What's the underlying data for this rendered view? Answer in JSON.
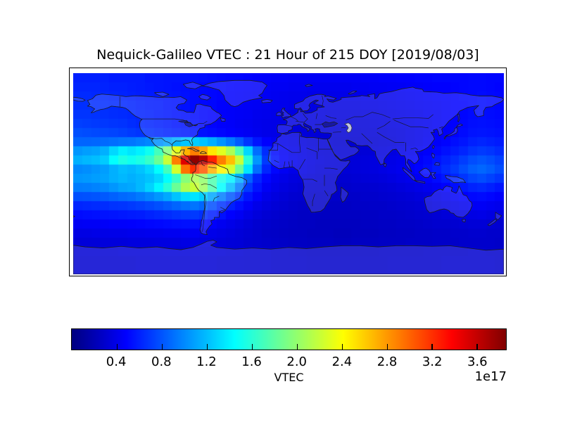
{
  "title": "Nequick-Galileo VTEC : 21 Hour of 215 DOY [2019/08/03]",
  "colorbar": {
    "label": "VTEC",
    "offset_text": "1e17",
    "tick_labels": [
      "0.4",
      "0.8",
      "1.2",
      "1.6",
      "2.0",
      "2.4",
      "2.8",
      "3.2",
      "3.6"
    ],
    "tick_values": [
      0.4,
      0.8,
      1.2,
      1.6,
      2.0,
      2.4,
      2.8,
      3.2,
      3.6
    ],
    "vmin": 0.0,
    "vmax": 3.86,
    "colormap": "jet"
  },
  "map": {
    "land_tint": "rgba(255,255,255,0.15)",
    "coastline_color": "#1c1c1c",
    "caspian_fill": "#ccd1de"
  },
  "chart_data": {
    "type": "heatmap",
    "title": "Nequick-Galileo VTEC : 21 Hour of 215 DOY [2019/08/03]",
    "colorbar_label": "VTEC",
    "units_exponent": "1e17",
    "colormap": "jet",
    "vmin": 0.0,
    "vmax": 3.86,
    "lon_range": [
      -180,
      180
    ],
    "lat_range": [
      -90,
      90
    ],
    "grid_shape": [
      22,
      48
    ],
    "legend_position": "bottom",
    "values": [
      [
        0.6,
        0.6,
        0.6,
        0.6,
        0.58,
        0.58,
        0.58,
        0.58,
        0.56,
        0.56,
        0.55,
        0.55,
        0.55,
        0.54,
        0.53,
        0.52,
        0.51,
        0.5,
        0.5,
        0.49,
        0.48,
        0.47,
        0.46,
        0.46,
        0.45,
        0.45,
        0.45,
        0.45,
        0.45,
        0.45,
        0.45,
        0.45,
        0.46,
        0.46,
        0.47,
        0.47,
        0.48,
        0.48,
        0.49,
        0.49,
        0.5,
        0.5,
        0.5,
        0.5,
        0.51,
        0.51,
        0.5,
        0.5
      ],
      [
        0.62,
        0.62,
        0.62,
        0.61,
        0.6,
        0.6,
        0.59,
        0.58,
        0.57,
        0.56,
        0.55,
        0.54,
        0.53,
        0.52,
        0.51,
        0.5,
        0.5,
        0.49,
        0.48,
        0.47,
        0.46,
        0.45,
        0.44,
        0.44,
        0.43,
        0.43,
        0.42,
        0.42,
        0.42,
        0.42,
        0.42,
        0.43,
        0.43,
        0.44,
        0.44,
        0.45,
        0.45,
        0.46,
        0.46,
        0.47,
        0.48,
        0.48,
        0.49,
        0.5,
        0.51,
        0.51,
        0.5,
        0.49
      ],
      [
        0.64,
        0.64,
        0.63,
        0.63,
        0.62,
        0.61,
        0.6,
        0.59,
        0.58,
        0.57,
        0.56,
        0.55,
        0.54,
        0.52,
        0.51,
        0.5,
        0.49,
        0.48,
        0.47,
        0.46,
        0.45,
        0.44,
        0.43,
        0.42,
        0.41,
        0.41,
        0.4,
        0.4,
        0.4,
        0.4,
        0.4,
        0.4,
        0.41,
        0.41,
        0.42,
        0.42,
        0.43,
        0.44,
        0.45,
        0.46,
        0.47,
        0.48,
        0.49,
        0.5,
        0.51,
        0.52,
        0.51,
        0.5
      ],
      [
        0.66,
        0.66,
        0.65,
        0.65,
        0.64,
        0.63,
        0.62,
        0.6,
        0.59,
        0.58,
        0.56,
        0.55,
        0.54,
        0.52,
        0.51,
        0.5,
        0.48,
        0.47,
        0.46,
        0.45,
        0.44,
        0.43,
        0.42,
        0.41,
        0.4,
        0.39,
        0.38,
        0.38,
        0.37,
        0.37,
        0.37,
        0.37,
        0.38,
        0.38,
        0.39,
        0.4,
        0.41,
        0.42,
        0.43,
        0.44,
        0.45,
        0.46,
        0.48,
        0.49,
        0.51,
        0.52,
        0.51,
        0.5
      ],
      [
        0.68,
        0.68,
        0.67,
        0.66,
        0.65,
        0.64,
        0.63,
        0.61,
        0.6,
        0.58,
        0.57,
        0.55,
        0.54,
        0.52,
        0.5,
        0.49,
        0.47,
        0.46,
        0.45,
        0.44,
        0.42,
        0.41,
        0.4,
        0.39,
        0.38,
        0.37,
        0.36,
        0.36,
        0.35,
        0.35,
        0.35,
        0.35,
        0.36,
        0.36,
        0.37,
        0.38,
        0.39,
        0.4,
        0.41,
        0.43,
        0.44,
        0.46,
        0.48,
        0.5,
        0.52,
        0.53,
        0.52,
        0.51
      ],
      [
        0.72,
        0.71,
        0.7,
        0.69,
        0.68,
        0.67,
        0.65,
        0.63,
        0.62,
        0.6,
        0.58,
        0.56,
        0.55,
        0.53,
        0.51,
        0.49,
        0.47,
        0.46,
        0.44,
        0.43,
        0.41,
        0.4,
        0.39,
        0.38,
        0.37,
        0.36,
        0.35,
        0.34,
        0.34,
        0.33,
        0.33,
        0.34,
        0.34,
        0.35,
        0.36,
        0.37,
        0.38,
        0.39,
        0.41,
        0.42,
        0.44,
        0.46,
        0.48,
        0.51,
        0.53,
        0.54,
        0.53,
        0.52
      ],
      [
        0.78,
        0.77,
        0.76,
        0.75,
        0.74,
        0.72,
        0.7,
        0.68,
        0.66,
        0.64,
        0.62,
        0.6,
        0.58,
        0.56,
        0.54,
        0.52,
        0.5,
        0.48,
        0.46,
        0.44,
        0.42,
        0.4,
        0.39,
        0.38,
        0.36,
        0.35,
        0.34,
        0.33,
        0.33,
        0.32,
        0.32,
        0.32,
        0.33,
        0.33,
        0.34,
        0.35,
        0.36,
        0.38,
        0.4,
        0.42,
        0.44,
        0.46,
        0.49,
        0.52,
        0.55,
        0.56,
        0.55,
        0.54
      ],
      [
        0.86,
        0.86,
        0.87,
        0.88,
        0.9,
        0.92,
        0.93,
        0.96,
        0.99,
        1.03,
        1.09,
        1.16,
        1.23,
        1.26,
        1.22,
        1.14,
        1.04,
        0.94,
        0.82,
        0.68,
        0.56,
        0.48,
        0.43,
        0.4,
        0.38,
        0.36,
        0.34,
        0.33,
        0.32,
        0.31,
        0.31,
        0.31,
        0.32,
        0.32,
        0.33,
        0.34,
        0.36,
        0.38,
        0.4,
        0.43,
        0.46,
        0.49,
        0.53,
        0.56,
        0.6,
        0.62,
        0.6,
        0.58
      ],
      [
        1.05,
        1.08,
        1.1,
        1.15,
        1.3,
        1.4,
        1.35,
        1.4,
        1.5,
        1.7,
        1.95,
        2.3,
        2.7,
        2.9,
        2.75,
        2.5,
        2.3,
        2.1,
        1.75,
        1.3,
        0.9,
        0.65,
        0.52,
        0.45,
        0.4,
        0.38,
        0.36,
        0.34,
        0.33,
        0.32,
        0.32,
        0.32,
        0.33,
        0.34,
        0.35,
        0.37,
        0.39,
        0.41,
        0.44,
        0.47,
        0.5,
        0.54,
        0.58,
        0.62,
        0.67,
        0.7,
        0.68,
        0.64
      ],
      [
        1.15,
        1.18,
        1.2,
        1.25,
        1.45,
        1.55,
        1.5,
        1.55,
        1.65,
        1.85,
        2.2,
        2.9,
        3.5,
        3.8,
        3.65,
        3.25,
        2.9,
        2.65,
        2.2,
        1.6,
        1.05,
        0.7,
        0.55,
        0.46,
        0.42,
        0.39,
        0.37,
        0.35,
        0.34,
        0.33,
        0.33,
        0.34,
        0.35,
        0.36,
        0.37,
        0.39,
        0.41,
        0.44,
        0.47,
        0.51,
        0.55,
        0.6,
        0.65,
        0.71,
        0.77,
        0.8,
        0.77,
        0.72
      ],
      [
        1.0,
        1.02,
        1.05,
        1.08,
        1.15,
        1.2,
        1.18,
        1.22,
        1.3,
        1.45,
        1.7,
        2.25,
        2.95,
        3.2,
        3.05,
        2.7,
        2.45,
        2.25,
        1.85,
        1.35,
        0.9,
        0.62,
        0.5,
        0.44,
        0.4,
        0.38,
        0.36,
        0.34,
        0.33,
        0.33,
        0.33,
        0.34,
        0.35,
        0.36,
        0.38,
        0.4,
        0.42,
        0.45,
        0.49,
        0.53,
        0.58,
        0.64,
        0.7,
        0.77,
        0.84,
        0.87,
        0.83,
        0.77
      ],
      [
        1.05,
        1.06,
        1.08,
        1.1,
        1.15,
        1.18,
        1.15,
        1.18,
        1.22,
        1.3,
        1.45,
        1.65,
        1.95,
        2.1,
        2.0,
        1.75,
        1.55,
        1.4,
        1.15,
        0.85,
        0.62,
        0.5,
        0.43,
        0.39,
        0.36,
        0.35,
        0.33,
        0.32,
        0.31,
        0.31,
        0.31,
        0.32,
        0.33,
        0.34,
        0.35,
        0.37,
        0.39,
        0.41,
        0.44,
        0.48,
        0.52,
        0.57,
        0.62,
        0.68,
        0.74,
        0.77,
        0.73,
        0.68
      ],
      [
        0.95,
        0.96,
        0.98,
        1.0,
        1.05,
        1.1,
        1.12,
        1.18,
        1.28,
        1.42,
        1.6,
        1.85,
        2.1,
        2.2,
        2.05,
        1.75,
        1.45,
        1.2,
        0.95,
        0.7,
        0.55,
        0.45,
        0.4,
        0.36,
        0.34,
        0.32,
        0.31,
        0.3,
        0.3,
        0.29,
        0.29,
        0.3,
        0.3,
        0.31,
        0.32,
        0.33,
        0.35,
        0.37,
        0.39,
        0.42,
        0.45,
        0.49,
        0.53,
        0.57,
        0.61,
        0.63,
        0.6,
        0.56
      ],
      [
        0.78,
        0.79,
        0.8,
        0.82,
        0.85,
        0.88,
        0.9,
        0.94,
        0.99,
        1.05,
        1.12,
        1.22,
        1.32,
        1.35,
        1.27,
        1.12,
        0.96,
        0.81,
        0.68,
        0.56,
        0.47,
        0.4,
        0.36,
        0.33,
        0.31,
        0.3,
        0.29,
        0.28,
        0.28,
        0.28,
        0.28,
        0.28,
        0.29,
        0.29,
        0.3,
        0.31,
        0.32,
        0.33,
        0.35,
        0.37,
        0.39,
        0.42,
        0.45,
        0.48,
        0.51,
        0.52,
        0.5,
        0.47
      ],
      [
        0.62,
        0.63,
        0.64,
        0.65,
        0.67,
        0.68,
        0.7,
        0.72,
        0.75,
        0.78,
        0.82,
        0.86,
        0.9,
        0.92,
        0.87,
        0.78,
        0.68,
        0.6,
        0.53,
        0.46,
        0.4,
        0.36,
        0.33,
        0.31,
        0.29,
        0.28,
        0.27,
        0.27,
        0.26,
        0.26,
        0.26,
        0.27,
        0.27,
        0.28,
        0.28,
        0.29,
        0.3,
        0.31,
        0.32,
        0.34,
        0.36,
        0.38,
        0.4,
        0.42,
        0.44,
        0.45,
        0.43,
        0.41
      ],
      [
        0.52,
        0.53,
        0.54,
        0.55,
        0.56,
        0.57,
        0.58,
        0.59,
        0.61,
        0.63,
        0.65,
        0.67,
        0.69,
        0.7,
        0.66,
        0.6,
        0.54,
        0.48,
        0.44,
        0.39,
        0.35,
        0.32,
        0.3,
        0.28,
        0.27,
        0.26,
        0.26,
        0.25,
        0.25,
        0.25,
        0.25,
        0.25,
        0.26,
        0.26,
        0.27,
        0.27,
        0.28,
        0.29,
        0.3,
        0.31,
        0.32,
        0.34,
        0.35,
        0.37,
        0.38,
        0.39,
        0.37,
        0.36
      ],
      [
        0.44,
        0.45,
        0.45,
        0.46,
        0.47,
        0.47,
        0.48,
        0.49,
        0.5,
        0.51,
        0.52,
        0.53,
        0.54,
        0.54,
        0.51,
        0.47,
        0.43,
        0.4,
        0.37,
        0.34,
        0.31,
        0.29,
        0.28,
        0.27,
        0.26,
        0.25,
        0.25,
        0.24,
        0.24,
        0.24,
        0.24,
        0.24,
        0.25,
        0.25,
        0.26,
        0.26,
        0.27,
        0.27,
        0.28,
        0.29,
        0.3,
        0.3,
        0.31,
        0.32,
        0.33,
        0.33,
        0.32,
        0.31
      ],
      [
        0.38,
        0.38,
        0.39,
        0.39,
        0.4,
        0.4,
        0.41,
        0.41,
        0.42,
        0.42,
        0.43,
        0.43,
        0.44,
        0.44,
        0.42,
        0.4,
        0.38,
        0.36,
        0.34,
        0.32,
        0.3,
        0.28,
        0.27,
        0.26,
        0.25,
        0.25,
        0.24,
        0.24,
        0.24,
        0.23,
        0.23,
        0.24,
        0.24,
        0.24,
        0.25,
        0.25,
        0.26,
        0.26,
        0.27,
        0.27,
        0.28,
        0.28,
        0.29,
        0.29,
        0.3,
        0.3,
        0.29,
        0.29
      ],
      [
        0.34,
        0.34,
        0.34,
        0.35,
        0.35,
        0.35,
        0.36,
        0.36,
        0.36,
        0.37,
        0.37,
        0.37,
        0.38,
        0.38,
        0.37,
        0.36,
        0.35,
        0.34,
        0.33,
        0.31,
        0.3,
        0.29,
        0.28,
        0.27,
        0.26,
        0.26,
        0.25,
        0.25,
        0.25,
        0.24,
        0.24,
        0.25,
        0.25,
        0.25,
        0.26,
        0.26,
        0.26,
        0.27,
        0.27,
        0.27,
        0.28,
        0.28,
        0.28,
        0.29,
        0.29,
        0.29,
        0.29,
        0.28
      ],
      [
        0.32,
        0.32,
        0.32,
        0.32,
        0.32,
        0.33,
        0.33,
        0.33,
        0.33,
        0.33,
        0.34,
        0.34,
        0.34,
        0.34,
        0.34,
        0.33,
        0.33,
        0.32,
        0.32,
        0.31,
        0.3,
        0.3,
        0.29,
        0.29,
        0.28,
        0.28,
        0.27,
        0.27,
        0.27,
        0.27,
        0.27,
        0.27,
        0.27,
        0.27,
        0.28,
        0.28,
        0.28,
        0.28,
        0.28,
        0.29,
        0.29,
        0.29,
        0.29,
        0.29,
        0.3,
        0.3,
        0.29,
        0.29
      ],
      [
        0.31,
        0.31,
        0.31,
        0.31,
        0.31,
        0.31,
        0.31,
        0.32,
        0.32,
        0.32,
        0.32,
        0.32,
        0.32,
        0.32,
        0.32,
        0.32,
        0.31,
        0.31,
        0.31,
        0.3,
        0.3,
        0.3,
        0.29,
        0.29,
        0.29,
        0.29,
        0.28,
        0.28,
        0.28,
        0.28,
        0.28,
        0.28,
        0.28,
        0.28,
        0.28,
        0.29,
        0.29,
        0.29,
        0.29,
        0.29,
        0.29,
        0.3,
        0.3,
        0.3,
        0.3,
        0.3,
        0.3,
        0.29
      ],
      [
        0.31,
        0.31,
        0.31,
        0.31,
        0.31,
        0.31,
        0.31,
        0.32,
        0.32,
        0.32,
        0.32,
        0.32,
        0.32,
        0.32,
        0.32,
        0.32,
        0.31,
        0.31,
        0.31,
        0.3,
        0.3,
        0.3,
        0.29,
        0.29,
        0.29,
        0.29,
        0.28,
        0.28,
        0.28,
        0.28,
        0.28,
        0.28,
        0.28,
        0.28,
        0.28,
        0.29,
        0.29,
        0.29,
        0.29,
        0.29,
        0.29,
        0.3,
        0.3,
        0.3,
        0.3,
        0.3,
        0.3,
        0.29
      ]
    ]
  }
}
